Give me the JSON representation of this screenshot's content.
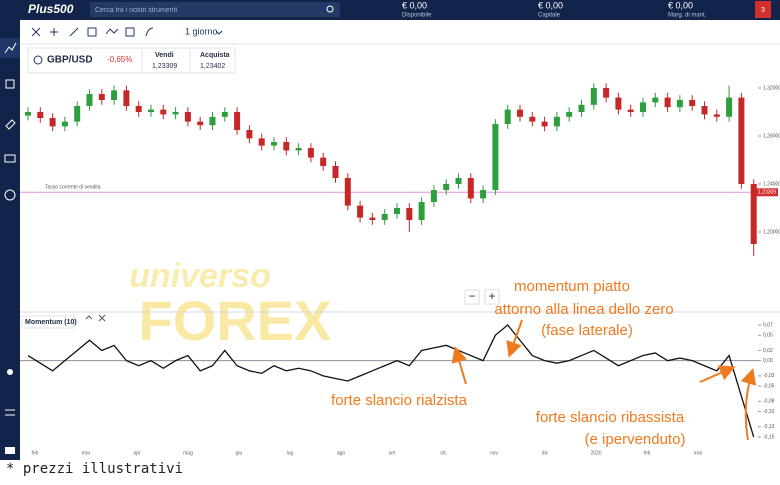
{
  "header": {
    "logo": "Plus500",
    "search": "Cerca tra i nostri strumenti",
    "balances": [
      {
        "value": "€ 0,00",
        "label": "Disponibile"
      },
      {
        "value": "€ 0,00",
        "label": "Capitale"
      },
      {
        "value": "€ 0,00",
        "label": "Marg. di mant."
      }
    ],
    "notifications": "3"
  },
  "toolbar": {
    "timeframe": "1 giorno"
  },
  "instrument": {
    "name": "GBP/USD",
    "change": "-0,65%",
    "sell_label": "Vendi",
    "sell": "1,23309",
    "buy_label": "Acquista",
    "buy": "1,23402"
  },
  "price_chart": {
    "yticks": [
      {
        "value": 1.32,
        "label": "1,32000"
      },
      {
        "value": 1.28,
        "label": "1,28000"
      },
      {
        "value": 1.24,
        "label": "1,24000"
      },
      {
        "value": 1.2,
        "label": "1,20000"
      }
    ],
    "current_line_label": "Tasso corrente di vendita",
    "current": {
      "value": 1.23309,
      "label": "1,23309"
    },
    "candles": [
      [
        1.297,
        1.304,
        1.293,
        1.3
      ],
      [
        1.3,
        1.304,
        1.291,
        1.295
      ],
      [
        1.295,
        1.299,
        1.284,
        1.288
      ],
      [
        1.288,
        1.296,
        1.284,
        1.292
      ],
      [
        1.292,
        1.309,
        1.288,
        1.305
      ],
      [
        1.305,
        1.319,
        1.301,
        1.315
      ],
      [
        1.315,
        1.319,
        1.306,
        1.31
      ],
      [
        1.31,
        1.322,
        1.306,
        1.318
      ],
      [
        1.318,
        1.322,
        1.301,
        1.305
      ],
      [
        1.305,
        1.309,
        1.296,
        1.3
      ],
      [
        1.3,
        1.306,
        1.296,
        1.302
      ],
      [
        1.302,
        1.306,
        1.294,
        1.298
      ],
      [
        1.298,
        1.304,
        1.294,
        1.3
      ],
      [
        1.3,
        1.304,
        1.288,
        1.292
      ],
      [
        1.292,
        1.296,
        1.285,
        1.289
      ],
      [
        1.289,
        1.3,
        1.285,
        1.296
      ],
      [
        1.296,
        1.304,
        1.292,
        1.3
      ],
      [
        1.3,
        1.304,
        1.281,
        1.285
      ],
      [
        1.285,
        1.289,
        1.274,
        1.278
      ],
      [
        1.278,
        1.282,
        1.268,
        1.272
      ],
      [
        1.272,
        1.279,
        1.268,
        1.275
      ],
      [
        1.275,
        1.279,
        1.264,
        1.268
      ],
      [
        1.268,
        1.274,
        1.264,
        1.27
      ],
      [
        1.27,
        1.274,
        1.258,
        1.262
      ],
      [
        1.262,
        1.266,
        1.251,
        1.255
      ],
      [
        1.255,
        1.259,
        1.241,
        1.245
      ],
      [
        1.245,
        1.249,
        1.218,
        1.222
      ],
      [
        1.222,
        1.226,
        1.208,
        1.212
      ],
      [
        1.212,
        1.216,
        1.206,
        1.21
      ],
      [
        1.21,
        1.219,
        1.206,
        1.215
      ],
      [
        1.215,
        1.224,
        1.211,
        1.22
      ],
      [
        1.22,
        1.224,
        1.2,
        1.21
      ],
      [
        1.21,
        1.229,
        1.206,
        1.225
      ],
      [
        1.225,
        1.239,
        1.221,
        1.235
      ],
      [
        1.235,
        1.244,
        1.231,
        1.24
      ],
      [
        1.24,
        1.249,
        1.236,
        1.245
      ],
      [
        1.245,
        1.249,
        1.224,
        1.228
      ],
      [
        1.228,
        1.239,
        1.224,
        1.235
      ],
      [
        1.235,
        1.294,
        1.231,
        1.29
      ],
      [
        1.29,
        1.306,
        1.286,
        1.302
      ],
      [
        1.302,
        1.306,
        1.292,
        1.296
      ],
      [
        1.296,
        1.3,
        1.288,
        1.292
      ],
      [
        1.292,
        1.296,
        1.284,
        1.288
      ],
      [
        1.288,
        1.3,
        1.284,
        1.296
      ],
      [
        1.296,
        1.304,
        1.292,
        1.3
      ],
      [
        1.3,
        1.31,
        1.296,
        1.306
      ],
      [
        1.306,
        1.324,
        1.302,
        1.32
      ],
      [
        1.32,
        1.324,
        1.308,
        1.312
      ],
      [
        1.312,
        1.316,
        1.298,
        1.302
      ],
      [
        1.302,
        1.306,
        1.296,
        1.3
      ],
      [
        1.3,
        1.312,
        1.296,
        1.308
      ],
      [
        1.308,
        1.316,
        1.304,
        1.312
      ],
      [
        1.312,
        1.316,
        1.3,
        1.304
      ],
      [
        1.304,
        1.314,
        1.3,
        1.31
      ],
      [
        1.31,
        1.314,
        1.301,
        1.305
      ],
      [
        1.305,
        1.309,
        1.294,
        1.298
      ],
      [
        1.298,
        1.302,
        1.292,
        1.296
      ],
      [
        1.296,
        1.322,
        1.292,
        1.312
      ],
      [
        1.312,
        1.316,
        1.236,
        1.24
      ],
      [
        1.24,
        1.244,
        1.18,
        1.19
      ]
    ]
  },
  "zoom": [
    "−",
    "+"
  ],
  "momentum": {
    "title": "Momentum (10)",
    "yticks": [
      {
        "value": 0.07,
        "label": "0,07"
      },
      {
        "value": 0.05,
        "label": "0,05"
      },
      {
        "value": 0.02,
        "label": "0,02"
      },
      {
        "value": 0,
        "label": "0,00"
      },
      {
        "value": -0.03,
        "label": "-0,03"
      },
      {
        "value": -0.05,
        "label": "-0,05"
      },
      {
        "value": -0.08,
        "label": "-0,08"
      },
      {
        "value": -0.1,
        "label": "-0,10"
      },
      {
        "value": -0.13,
        "label": "-0,13"
      },
      {
        "value": -0.15,
        "label": "-0,15"
      }
    ],
    "values": [
      0.01,
      -0.005,
      -0.02,
      0.0,
      0.02,
      0.04,
      0.02,
      0.03,
      0.0,
      -0.01,
      0.0,
      -0.015,
      0.0,
      0.01,
      -0.02,
      -0.01,
      0.02,
      -0.01,
      -0.02,
      -0.025,
      -0.01,
      -0.02,
      -0.015,
      -0.02,
      -0.03,
      -0.035,
      -0.04,
      -0.03,
      -0.02,
      -0.01,
      0.0,
      -0.01,
      0.02,
      0.025,
      0.03,
      0.02,
      0.01,
      0.0,
      0.05,
      0.07,
      0.04,
      0.01,
      0.0,
      -0.005,
      0.0,
      0.01,
      0.02,
      0.005,
      -0.01,
      0.0,
      0.01,
      0.015,
      0.0,
      0.005,
      0.0,
      -0.01,
      -0.02,
      0.01,
      -0.07,
      -0.15
    ]
  },
  "x_labels": [
    "feb",
    "mar",
    "apr",
    "mag",
    "giu",
    "lug",
    "ago",
    "set",
    "ott",
    "nov",
    "dic",
    "2020",
    "feb",
    "mar"
  ],
  "watermark": [
    "universo",
    "FOREX"
  ],
  "annotations": [
    "momentum piatto",
    "attorno alla linea dello zero",
    "(fase laterale)",
    "forte slancio rialzista",
    "forte slancio ribassista",
    "(e ipervenduto)"
  ],
  "footnote": "* prezzi illustrativi"
}
